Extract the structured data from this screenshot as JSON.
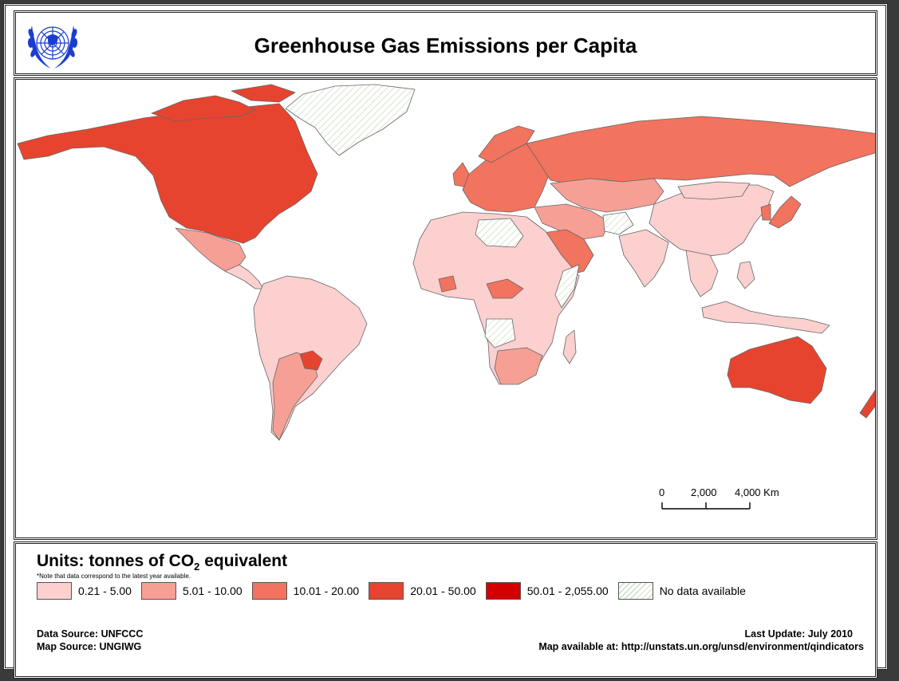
{
  "header": {
    "title": "Greenhouse Gas Emissions per Capita",
    "logo_name": "UN emblem"
  },
  "map": {
    "scale_bar": {
      "labels": [
        "0",
        "2,000",
        "4,000 Km"
      ]
    },
    "region_classes": {
      "north_america": "20.01 - 50.00",
      "greenland": "No data available",
      "russia": "10.01 - 20.00",
      "europe": "10.01 - 20.00",
      "china": "0.21 - 5.00",
      "india": "0.21 - 5.00",
      "africa": "0.21 - 5.00",
      "south_america": "0.21 - 5.00",
      "paraguay": "20.01 - 50.00",
      "saudi_arabia": "10.01 - 20.00",
      "australia": "20.01 - 50.00",
      "new_zealand": "20.01 - 50.00",
      "japan": "10.01 - 20.00"
    }
  },
  "legend": {
    "units_prefix": "Units: tonnes of CO",
    "units_sub": "2",
    "units_suffix": " equivalent",
    "note": "*Note that data correspond to the latest year available.",
    "classes": [
      {
        "label": "0.21 - 5.00",
        "color": "#fbd0cf"
      },
      {
        "label": "5.01 - 10.00",
        "color": "#f6a095"
      },
      {
        "label": "10.01 - 20.00",
        "color": "#f2735e"
      },
      {
        "label": "20.01 - 50.00",
        "color": "#e74430"
      },
      {
        "label": "50.01 - 2,055.00",
        "color": "#d40000"
      },
      {
        "label": "No data available",
        "color": "hatched"
      }
    ]
  },
  "footer": {
    "data_source": "Data Source: UNFCCC",
    "map_source": "Map Source: UNGIWG",
    "last_update": "Last Update: July 2010",
    "map_url": "Map available at: http://unstats.un.org/unsd/environment/qindicators"
  }
}
